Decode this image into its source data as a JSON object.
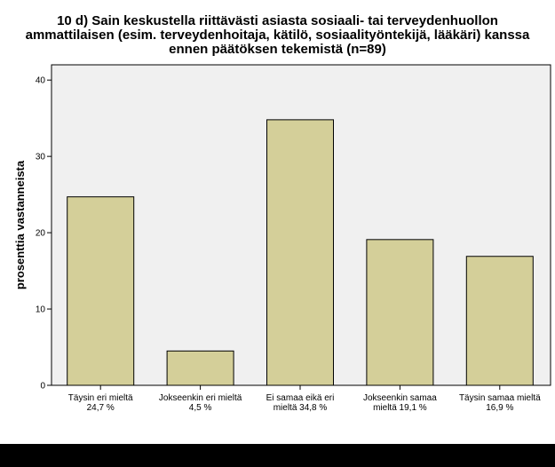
{
  "chart_data": {
    "type": "bar",
    "title_lines": [
      "10 d) Sain keskustella riittävästi asiasta sosiaali- tai terveydenhuollon",
      "ammattilaisen (esim. terveydenhoitaja, kätilö, sosiaalityöntekijä, lääkäri) kanssa",
      "ennen päätöksen tekemistä (n=89)"
    ],
    "categories": [
      [
        "Täysin eri mieltä",
        "24,7 %"
      ],
      [
        "Jokseenkin eri mieltä",
        "4,5 %"
      ],
      [
        "Ei samaa eikä eri",
        "mieltä 34,8 %"
      ],
      [
        "Jokseenkin samaa",
        "mieltä 19,1 %"
      ],
      [
        "Täysin samaa mieltä",
        "16,9 %"
      ]
    ],
    "values": [
      24.7,
      4.5,
      34.8,
      19.1,
      16.9
    ],
    "ylabel": "prosenttia vastanneista",
    "xlabel": "",
    "ylim": [
      0,
      42
    ],
    "yticks": [
      0,
      10,
      20,
      30,
      40
    ],
    "grid": false,
    "colors": {
      "plot_background": "#f0f0f0",
      "bar_fill": "#d4cf99",
      "bar_stroke": "#000000"
    }
  }
}
